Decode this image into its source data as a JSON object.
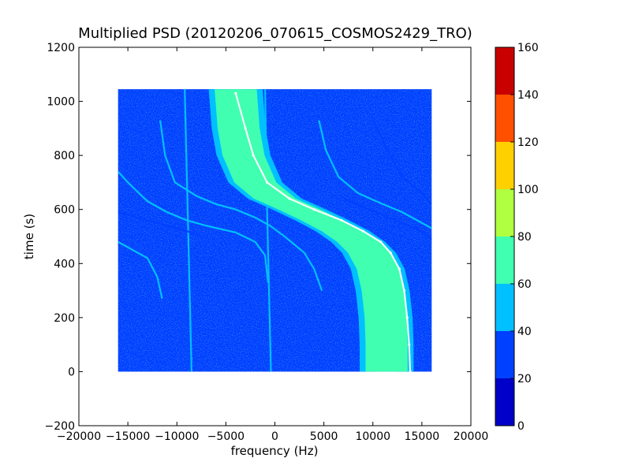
{
  "chart_data": {
    "type": "heatmap",
    "title": "Multiplied PSD (20120206_070615_COSMOS2429_TRO)",
    "xlabel": "frequency (Hz)",
    "ylabel": "time (s)",
    "xlim": [
      -20000,
      20000
    ],
    "ylim": [
      -200,
      1200
    ],
    "x_ticks": [
      -20000,
      -15000,
      -10000,
      -5000,
      0,
      5000,
      10000,
      15000,
      20000
    ],
    "x_tick_labels": [
      "−20000",
      "−15000",
      "−10000",
      "−5000",
      "0",
      "5000",
      "10000",
      "15000",
      "20000"
    ],
    "y_ticks": [
      -200,
      0,
      200,
      400,
      600,
      800,
      1000,
      1200
    ],
    "y_tick_labels": [
      "−200",
      "0",
      "200",
      "400",
      "600",
      "800",
      "1000",
      "1200"
    ],
    "data_extent": {
      "x": [
        -16000,
        16000
      ],
      "y": [
        0,
        1045
      ]
    },
    "background_level": 25,
    "colorbar": {
      "levels": [
        0,
        20,
        40,
        60,
        80,
        100,
        120,
        140,
        160
      ],
      "labels": [
        "0",
        "20",
        "40",
        "60",
        "80",
        "100",
        "120",
        "140",
        "160"
      ],
      "colors": [
        "#0000c8",
        "#0040ff",
        "#00c0ff",
        "#40ffb0",
        "#b0ff40",
        "#ffd000",
        "#ff5000",
        "#c80000"
      ]
    },
    "main_band": {
      "width_hz": 5500,
      "peak_level": 75,
      "centerline": [
        {
          "t": 1045,
          "f": -4000
        },
        {
          "t": 900,
          "f": -3700
        },
        {
          "t": 800,
          "f": -3200
        },
        {
          "t": 700,
          "f": -2000
        },
        {
          "t": 640,
          "f": 0
        },
        {
          "t": 600,
          "f": 2500
        },
        {
          "t": 560,
          "f": 4800
        },
        {
          "t": 520,
          "f": 6900
        },
        {
          "t": 480,
          "f": 8500
        },
        {
          "t": 440,
          "f": 9600
        },
        {
          "t": 380,
          "f": 10500
        },
        {
          "t": 300,
          "f": 11000
        },
        {
          "t": 200,
          "f": 11300
        },
        {
          "t": 100,
          "f": 11400
        },
        {
          "t": 0,
          "f": 11400
        }
      ]
    },
    "bright_track": {
      "level": 95,
      "points": [
        {
          "t": 1030,
          "f": -4000
        },
        {
          "t": 900,
          "f": -3000
        },
        {
          "t": 800,
          "f": -2200
        },
        {
          "t": 700,
          "f": -800
        },
        {
          "t": 640,
          "f": 1500
        },
        {
          "t": 600,
          "f": 4000
        },
        {
          "t": 560,
          "f": 6800
        },
        {
          "t": 520,
          "f": 9000
        },
        {
          "t": 480,
          "f": 10800
        },
        {
          "t": 440,
          "f": 11800
        },
        {
          "t": 380,
          "f": 12700
        },
        {
          "t": 300,
          "f": 13200
        },
        {
          "t": 200,
          "f": 13500
        },
        {
          "t": 100,
          "f": 13700
        },
        {
          "t": 0,
          "f": 13800
        }
      ]
    },
    "faint_traces": [
      {
        "level": 45,
        "points": [
          {
            "t": 1045,
            "f": -9200
          },
          {
            "t": 600,
            "f": -8900
          },
          {
            "t": 0,
            "f": -8500
          }
        ]
      },
      {
        "level": 45,
        "points": [
          {
            "t": 1045,
            "f": -1000
          },
          {
            "t": 600,
            "f": -800
          },
          {
            "t": 0,
            "f": -400
          }
        ]
      },
      {
        "level": 40,
        "points": [
          {
            "t": 740,
            "f": -16000
          },
          {
            "t": 700,
            "f": -15000
          },
          {
            "t": 630,
            "f": -13000
          },
          {
            "t": 590,
            "f": -11000
          },
          {
            "t": 560,
            "f": -9000
          },
          {
            "t": 540,
            "f": -7000
          },
          {
            "t": 515,
            "f": -4000
          },
          {
            "t": 480,
            "f": -2000
          },
          {
            "t": 430,
            "f": -1000
          },
          {
            "t": 330,
            "f": -700
          }
        ]
      },
      {
        "level": 40,
        "points": [
          {
            "t": 480,
            "f": -16000
          },
          {
            "t": 420,
            "f": -13000
          },
          {
            "t": 350,
            "f": -12000
          },
          {
            "t": 270,
            "f": -11500
          }
        ]
      },
      {
        "level": 35,
        "points": [
          {
            "t": 590,
            "f": -16000
          },
          {
            "t": 560,
            "f": -13000
          },
          {
            "t": 540,
            "f": -11000
          },
          {
            "t": 520,
            "f": -9000
          },
          {
            "t": 500,
            "f": -7500
          }
        ]
      },
      {
        "level": 40,
        "points": [
          {
            "t": 930,
            "f": -11700
          },
          {
            "t": 800,
            "f": -11200
          },
          {
            "t": 700,
            "f": -10200
          },
          {
            "t": 650,
            "f": -8000
          },
          {
            "t": 620,
            "f": -6000
          },
          {
            "t": 600,
            "f": -4000
          },
          {
            "t": 570,
            "f": -2000
          },
          {
            "t": 540,
            "f": -500
          },
          {
            "t": 500,
            "f": 1000
          },
          {
            "t": 440,
            "f": 3000
          },
          {
            "t": 380,
            "f": 4000
          },
          {
            "t": 300,
            "f": 4800
          }
        ]
      },
      {
        "level": 40,
        "points": [
          {
            "t": 930,
            "f": 4500
          },
          {
            "t": 820,
            "f": 5200
          },
          {
            "t": 720,
            "f": 6500
          },
          {
            "t": 660,
            "f": 8500
          },
          {
            "t": 620,
            "f": 11000
          },
          {
            "t": 590,
            "f": 13000
          },
          {
            "t": 560,
            "f": 14500
          },
          {
            "t": 530,
            "f": 16000
          }
        ]
      },
      {
        "level": 35,
        "points": [
          {
            "t": 930,
            "f": 10000
          },
          {
            "t": 820,
            "f": 11500
          },
          {
            "t": 720,
            "f": 13000
          },
          {
            "t": 660,
            "f": 15000
          },
          {
            "t": 620,
            "f": 16000
          }
        ]
      },
      {
        "level": 35,
        "points": [
          {
            "t": 640,
            "f": 7000
          },
          {
            "t": 610,
            "f": 9000
          },
          {
            "t": 580,
            "f": 11000
          },
          {
            "t": 550,
            "f": 13000
          },
          {
            "t": 520,
            "f": 15000
          },
          {
            "t": 490,
            "f": 16000
          }
        ]
      }
    ]
  }
}
